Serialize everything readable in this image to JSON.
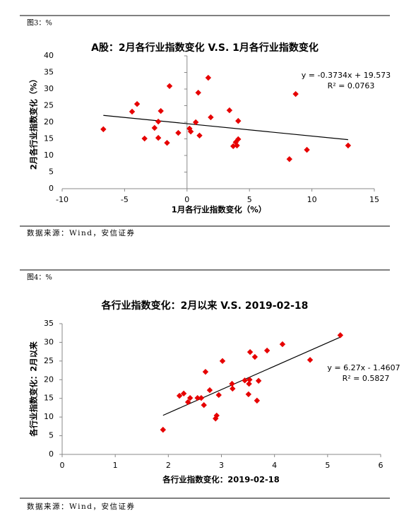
{
  "chart_data": [
    {
      "type": "scatter",
      "caption": "图3：%",
      "title": "A股：2月各行业指数变化  V.S.  1月各行业指数变化",
      "xlabel": "1月各行业指数变化（%）",
      "ylabel": "2月各行业指数变化（%）",
      "annotations": [
        "y = -0.3734x + 19.573",
        "R² = 0.0763"
      ],
      "trendline": {
        "slope": -0.3734,
        "intercept": 19.573
      },
      "source": "数据来源：Wind，安信证券",
      "color": "#e60000",
      "x": [
        -6.7,
        -4.4,
        -4.0,
        -3.4,
        -2.6,
        -2.3,
        -2.1,
        -2.3,
        -1.6,
        -1.4,
        -0.7,
        0.2,
        0.3,
        0.7,
        0.9,
        1.0,
        1.7,
        1.9,
        3.4,
        3.7,
        3.9,
        4.0,
        4.1,
        4.1,
        8.2,
        8.7,
        9.6,
        12.9
      ],
      "values": [
        17.9,
        23.2,
        25.5,
        15.1,
        18.3,
        20.2,
        23.4,
        15.3,
        13.8,
        30.9,
        16.8,
        18.1,
        17.2,
        20.0,
        28.9,
        16.0,
        33.4,
        21.5,
        23.6,
        12.8,
        14.0,
        13.0,
        14.9,
        20.4,
        8.9,
        28.5,
        11.7,
        13.0
      ],
      "xlim": [
        -10,
        15
      ],
      "ylim": [
        0,
        40
      ],
      "xticks": [
        -10,
        -5,
        0,
        5,
        10,
        15
      ],
      "yticks": [
        0,
        5,
        10,
        15,
        20,
        25,
        30,
        35,
        40
      ]
    },
    {
      "type": "scatter",
      "caption": "图4：%",
      "title": "各行业指数变化：2月以来   V.S.  2019-02-18",
      "xlabel": "各行业指数变化：2019-02-18",
      "ylabel": "各行业指数变化：2月以来",
      "annotations": [
        "y = 6.27x - 1.4607",
        "R² = 0.5827"
      ],
      "trendline": {
        "slope": 6.27,
        "intercept": -1.4607
      },
      "source": "数据来源：Wind，安信证券",
      "color": "#e60000",
      "x": [
        1.9,
        2.21,
        2.29,
        2.37,
        2.41,
        2.55,
        2.62,
        2.67,
        2.7,
        2.78,
        2.89,
        2.91,
        2.95,
        3.02,
        3.2,
        3.21,
        3.44,
        3.51,
        3.52,
        3.53,
        3.54,
        3.63,
        3.67,
        3.7,
        3.86,
        4.15,
        4.67,
        5.24
      ],
      "values": [
        6.6,
        15.7,
        16.3,
        14.0,
        15.1,
        15.1,
        15.1,
        13.2,
        22.1,
        17.2,
        9.6,
        10.4,
        15.9,
        25.0,
        18.9,
        17.6,
        19.8,
        16.1,
        18.9,
        20.0,
        27.4,
        26.1,
        14.4,
        19.7,
        27.8,
        29.5,
        25.3,
        31.9
      ],
      "xlim": [
        0,
        6
      ],
      "ylim": [
        0,
        35
      ],
      "xticks": [
        0,
        1,
        2,
        3,
        4,
        5,
        6
      ],
      "yticks": [
        0,
        5,
        10,
        15,
        20,
        25,
        30,
        35
      ]
    }
  ]
}
